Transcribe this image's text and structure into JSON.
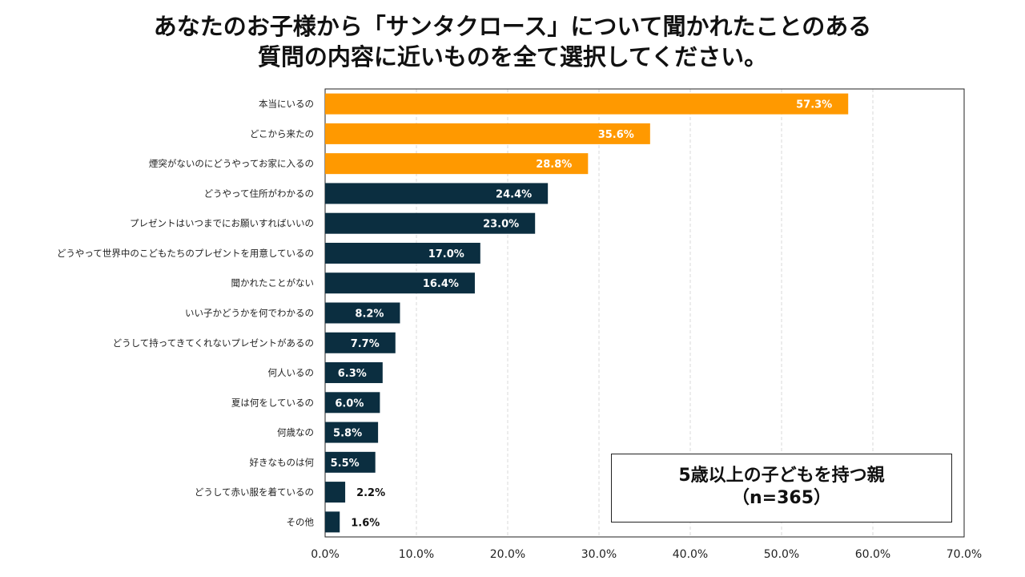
{
  "title_lines": [
    "あなたのお子様から「サンタクロース」について聞かれたことのある",
    "質問の内容に近いものを全て選択してください。"
  ],
  "note": {
    "line1": "5歳以上の子どもを持つ親",
    "line2": "（n=365）"
  },
  "colors": {
    "highlight": "#FF9900",
    "default": "#0B2E40",
    "grid": "#D9D9D9"
  },
  "chart_data": {
    "type": "bar",
    "orientation": "horizontal",
    "categories": [
      "本当にいるの",
      "どこから来たの",
      "煙突がないのにどうやってお家に入るの",
      "どうやって住所がわかるの",
      "プレゼントはいつまでにお願いすればいいの",
      "どうやって世界中のこどもたちのプレゼントを用意しているの",
      "聞かれたことがない",
      "いい子かどうかを何でわかるの",
      "どうして持ってきてくれないプレゼントがあるの",
      "何人いるの",
      "夏は何をしているの",
      "何歳なの",
      "好きなものは何",
      "どうして赤い服を着ているの",
      "その他"
    ],
    "values": [
      57.3,
      35.6,
      28.8,
      24.4,
      23.0,
      17.0,
      16.4,
      8.2,
      7.7,
      6.3,
      6.0,
      5.8,
      5.5,
      2.2,
      1.6
    ],
    "data_labels": [
      "57.3%",
      "35.6%",
      "28.8%",
      "24.4%",
      "23.0%",
      "17.0%",
      "16.4%",
      "8.2%",
      "7.7%",
      "6.3%",
      "6.0%",
      "5.8%",
      "5.5%",
      "2.2%",
      "1.6%"
    ],
    "highlighted_top": 3,
    "xlim": [
      0,
      70
    ],
    "xticks": [
      "0.0%",
      "10.0%",
      "20.0%",
      "30.0%",
      "40.0%",
      "50.0%",
      "60.0%",
      "70.0%"
    ],
    "grid": "vertical dashed",
    "title": "",
    "xlabel": "",
    "ylabel": ""
  }
}
